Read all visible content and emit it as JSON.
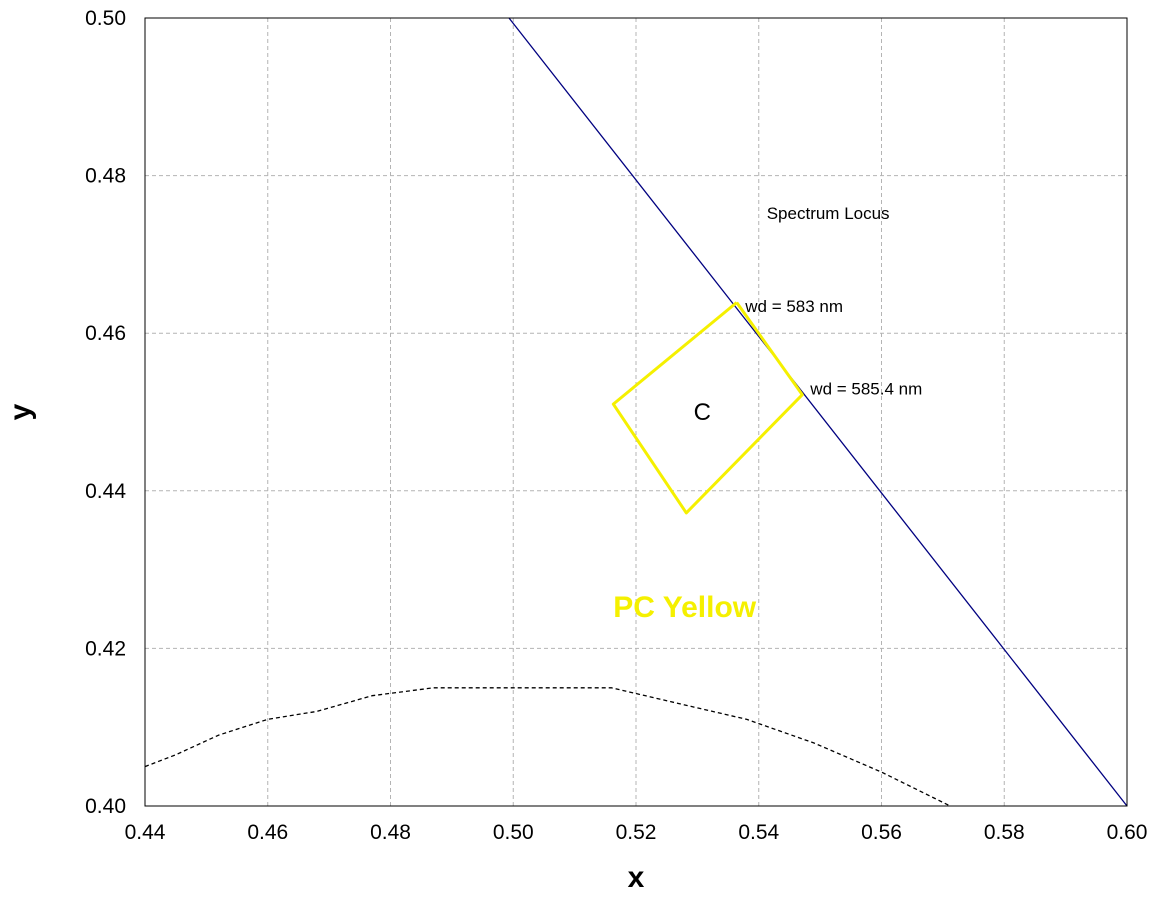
{
  "chart_data": {
    "type": "line",
    "xlabel": "x",
    "ylabel": "y",
    "xlim": [
      0.44,
      0.6
    ],
    "ylim": [
      0.4,
      0.5
    ],
    "x_ticks": [
      0.44,
      0.46,
      0.48,
      0.5,
      0.52,
      0.54,
      0.56,
      0.58,
      0.6
    ],
    "y_ticks": [
      0.4,
      0.42,
      0.44,
      0.46,
      0.48,
      0.5
    ],
    "x_tick_labels": [
      "0.44",
      "0.46",
      "0.48",
      "0.50",
      "0.52",
      "0.54",
      "0.56",
      "0.58",
      "0.60"
    ],
    "y_tick_labels": [
      "0.40",
      "0.42",
      "0.44",
      "0.46",
      "0.48",
      "0.50"
    ],
    "grid": true,
    "series": [
      {
        "name": "Spectrum Locus",
        "style": "solid",
        "color": "#000080",
        "points": [
          [
            0.4993,
            0.5
          ],
          [
            0.6,
            0.4
          ]
        ]
      },
      {
        "name": "",
        "style": "dashed",
        "color": "#000000",
        "points": [
          [
            0.44,
            0.405
          ],
          [
            0.445,
            0.4065
          ],
          [
            0.452,
            0.409
          ],
          [
            0.46,
            0.411
          ],
          [
            0.468,
            0.412
          ],
          [
            0.477,
            0.414
          ],
          [
            0.487,
            0.415
          ],
          [
            0.5,
            0.415
          ],
          [
            0.516,
            0.415
          ],
          [
            0.527,
            0.413
          ],
          [
            0.538,
            0.411
          ],
          [
            0.549,
            0.408
          ],
          [
            0.56,
            0.4043
          ],
          [
            0.5712,
            0.4
          ]
        ]
      },
      {
        "name": "PC Yellow",
        "style": "polygon",
        "color": "#f5f000",
        "points": [
          [
            0.5364,
            0.4639
          ],
          [
            0.5471,
            0.4522
          ],
          [
            0.5282,
            0.4372
          ],
          [
            0.5163,
            0.451
          ],
          [
            0.5364,
            0.4639
          ]
        ]
      }
    ],
    "annotations": [
      {
        "text": "Spectrum Locus",
        "x": 0.5413,
        "y": 0.4745,
        "style": "small"
      },
      {
        "text": "wd = 583 nm",
        "x": 0.5378,
        "y": 0.4627,
        "style": "small"
      },
      {
        "text": "wd = 585.4 nm",
        "x": 0.5484,
        "y": 0.4522,
        "style": "small"
      },
      {
        "text": "C",
        "x": 0.5308,
        "y": 0.449,
        "style": "big"
      },
      {
        "text": "PC Yellow",
        "x": 0.5163,
        "y": 0.424,
        "style": "pc",
        "color": "#f5f000"
      }
    ]
  }
}
